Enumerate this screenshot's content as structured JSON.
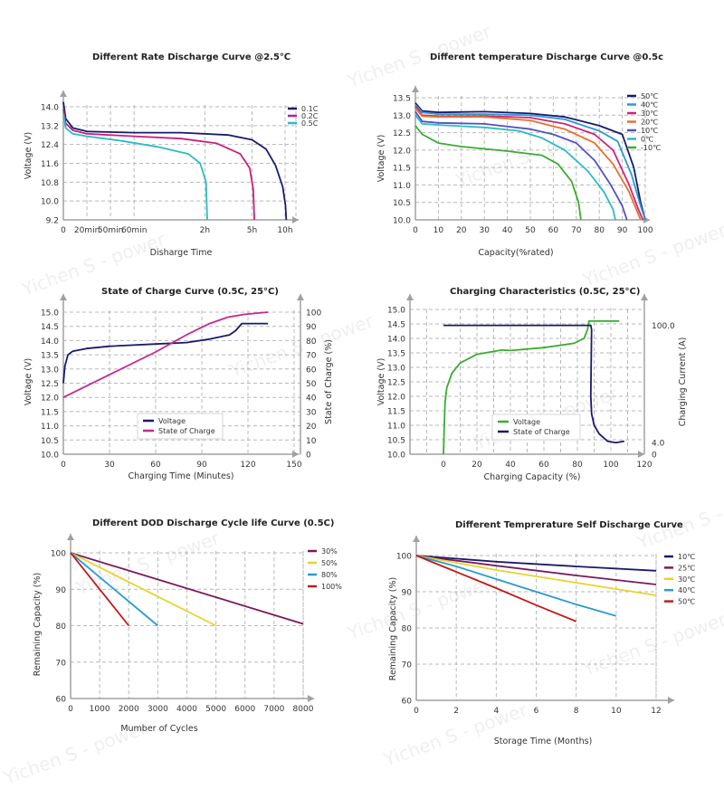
{
  "watermark": "Yichen S - power",
  "chart_data": [
    {
      "id": "rate",
      "type": "line",
      "title": "Different Rate Discharge Curve @2.5℃",
      "xlabel": "Disharge Time",
      "ylabel": "Voltage (V)",
      "x_scale": "categorical-time",
      "xticks": [
        {
          "label": "0",
          "pos": 0
        },
        {
          "label": "20min",
          "pos": 1
        },
        {
          "label": "50min",
          "pos": 2
        },
        {
          "label": "60min",
          "pos": 3
        },
        {
          "label": "2h",
          "pos": 6
        },
        {
          "label": "5h",
          "pos": 8
        },
        {
          "label": "10h",
          "pos": 9.4
        }
      ],
      "xlim": [
        0,
        10
      ],
      "yticks": [
        9.2,
        10.0,
        10.8,
        11.6,
        12.4,
        13.2,
        14.0
      ],
      "ylim": [
        9.2,
        14.6
      ],
      "grid": true,
      "legend": "top-right",
      "series": [
        {
          "name": "0.1C",
          "color": "#1a1a6e",
          "points": [
            [
              0,
              14.2
            ],
            [
              0.1,
              13.5
            ],
            [
              0.4,
              13.1
            ],
            [
              1,
              12.95
            ],
            [
              3,
              12.9
            ],
            [
              5,
              12.9
            ],
            [
              7,
              12.8
            ],
            [
              8,
              12.6
            ],
            [
              8.6,
              12.2
            ],
            [
              9,
              11.5
            ],
            [
              9.3,
              10.6
            ],
            [
              9.42,
              9.8
            ],
            [
              9.45,
              9.2
            ]
          ]
        },
        {
          "name": "0.2C",
          "color": "#c81e7c",
          "points": [
            [
              0,
              13.9
            ],
            [
              0.1,
              13.3
            ],
            [
              0.4,
              13.0
            ],
            [
              1,
              12.85
            ],
            [
              3,
              12.75
            ],
            [
              5,
              12.65
            ],
            [
              6.5,
              12.45
            ],
            [
              7.5,
              12.0
            ],
            [
              7.9,
              11.4
            ],
            [
              8.05,
              10.5
            ],
            [
              8.1,
              9.2
            ]
          ]
        },
        {
          "name": "0.5C",
          "color": "#2bbcc4",
          "points": [
            [
              0,
              13.7
            ],
            [
              0.1,
              13.1
            ],
            [
              0.4,
              12.85
            ],
            [
              1,
              12.75
            ],
            [
              2.5,
              12.55
            ],
            [
              4,
              12.3
            ],
            [
              5.3,
              12.0
            ],
            [
              5.8,
              11.6
            ],
            [
              6.05,
              10.8
            ],
            [
              6.1,
              9.2
            ]
          ]
        }
      ]
    },
    {
      "id": "temp",
      "type": "line",
      "title": "Different temperature Discharge Curve  @0.5c",
      "xlabel": "Capacity(%rated)",
      "ylabel": "Voltage (V)",
      "xticks": [
        0,
        10,
        20,
        30,
        40,
        50,
        60,
        70,
        80,
        90,
        100
      ],
      "xlim": [
        0,
        110
      ],
      "yticks": [
        10.0,
        10.5,
        11.0,
        11.5,
        12.0,
        12.5,
        13.0,
        13.5
      ],
      "ylim": [
        10.0,
        13.7
      ],
      "grid": true,
      "legend": "top-right",
      "series": [
        {
          "name": "50℃",
          "color": "#1a1a6e",
          "points": [
            [
              0,
              13.35
            ],
            [
              3,
              13.12
            ],
            [
              10,
              13.08
            ],
            [
              30,
              13.1
            ],
            [
              50,
              13.05
            ],
            [
              65,
              12.95
            ],
            [
              80,
              12.7
            ],
            [
              90,
              12.45
            ],
            [
              95,
              11.5
            ],
            [
              98,
              10.5
            ],
            [
              100,
              10.0
            ]
          ]
        },
        {
          "name": "40℃",
          "color": "#2a9bd0",
          "points": [
            [
              0,
              13.3
            ],
            [
              3,
              13.08
            ],
            [
              10,
              13.03
            ],
            [
              30,
              13.03
            ],
            [
              50,
              13.0
            ],
            [
              65,
              12.88
            ],
            [
              80,
              12.55
            ],
            [
              88,
              12.25
            ],
            [
              94,
              11.3
            ],
            [
              98,
              10.4
            ],
            [
              100,
              10.0
            ]
          ]
        },
        {
          "name": "30℃",
          "color": "#d0237f",
          "points": [
            [
              0,
              13.25
            ],
            [
              3,
              13.0
            ],
            [
              10,
              12.97
            ],
            [
              30,
              12.98
            ],
            [
              50,
              12.93
            ],
            [
              65,
              12.75
            ],
            [
              78,
              12.45
            ],
            [
              86,
              12.0
            ],
            [
              93,
              11.0
            ],
            [
              97,
              10.3
            ],
            [
              99,
              10.0
            ]
          ]
        },
        {
          "name": "20℃",
          "color": "#e8702a",
          "points": [
            [
              0,
              13.2
            ],
            [
              3,
              12.97
            ],
            [
              10,
              12.95
            ],
            [
              30,
              12.95
            ],
            [
              50,
              12.85
            ],
            [
              65,
              12.6
            ],
            [
              78,
              12.2
            ],
            [
              86,
              11.6
            ],
            [
              93,
              10.8
            ],
            [
              98,
              10.0
            ]
          ]
        },
        {
          "name": "10℃",
          "color": "#5252c0",
          "points": [
            [
              0,
              13.1
            ],
            [
              3,
              12.82
            ],
            [
              10,
              12.78
            ],
            [
              30,
              12.75
            ],
            [
              50,
              12.6
            ],
            [
              60,
              12.45
            ],
            [
              70,
              12.2
            ],
            [
              78,
              11.7
            ],
            [
              85,
              11.0
            ],
            [
              90,
              10.4
            ],
            [
              92,
              10.0
            ]
          ]
        },
        {
          "name": "0℃",
          "color": "#2bbcc4",
          "points": [
            [
              0,
              13.0
            ],
            [
              3,
              12.75
            ],
            [
              10,
              12.72
            ],
            [
              30,
              12.65
            ],
            [
              45,
              12.55
            ],
            [
              55,
              12.35
            ],
            [
              65,
              12.0
            ],
            [
              75,
              11.4
            ],
            [
              82,
              10.8
            ],
            [
              86,
              10.3
            ],
            [
              87,
              10.0
            ]
          ]
        },
        {
          "name": "-10℃",
          "color": "#3aad2e",
          "points": [
            [
              0,
              12.7
            ],
            [
              3,
              12.45
            ],
            [
              10,
              12.2
            ],
            [
              20,
              12.1
            ],
            [
              40,
              11.97
            ],
            [
              55,
              11.85
            ],
            [
              62,
              11.6
            ],
            [
              68,
              11.1
            ],
            [
              71,
              10.5
            ],
            [
              72,
              10.0
            ]
          ]
        }
      ]
    },
    {
      "id": "soc",
      "type": "line",
      "title": "State of Charge Curve (0.5C, 25°C)",
      "xlabel": "Charging Time (Minutes)",
      "ylabel": "Voltage (V)",
      "y2label": "State of Charge (%)",
      "xticks": [
        0,
        30,
        60,
        90,
        120,
        150
      ],
      "xlim": [
        0,
        150
      ],
      "yticks": [
        10.0,
        10.5,
        11.0,
        11.5,
        12.0,
        12.5,
        13.0,
        13.5,
        14.0,
        14.5,
        15.0
      ],
      "ylim": [
        10.0,
        15.0
      ],
      "y2ticks": [
        0,
        10,
        20,
        30,
        40,
        50,
        60,
        70,
        80,
        90,
        100
      ],
      "y2lim": [
        0,
        100
      ],
      "grid": true,
      "legend": "center-bottom",
      "series": [
        {
          "name": "Voltage",
          "axis": "left",
          "color": "#1a1a6e",
          "points": [
            [
              0,
              12.5
            ],
            [
              1,
              13.1
            ],
            [
              3,
              13.5
            ],
            [
              6,
              13.62
            ],
            [
              15,
              13.72
            ],
            [
              30,
              13.8
            ],
            [
              60,
              13.88
            ],
            [
              80,
              13.93
            ],
            [
              95,
              14.05
            ],
            [
              108,
              14.2
            ],
            [
              112,
              14.35
            ],
            [
              116,
              14.6
            ],
            [
              133,
              14.6
            ]
          ]
        },
        {
          "name": "State of Charge",
          "axis": "right",
          "color": "#c8288e",
          "points": [
            [
              0,
              40
            ],
            [
              30,
              56
            ],
            [
              60,
              72
            ],
            [
              80,
              84
            ],
            [
              95,
              92
            ],
            [
              107,
              96.5
            ],
            [
              118,
              98.5
            ],
            [
              133,
              100
            ]
          ]
        }
      ]
    },
    {
      "id": "charging",
      "type": "line",
      "title": "Charging Characteristics (0.5C, 25°C)",
      "xlabel": "Charging Capacity (%)",
      "ylabel": "Voltage (V)",
      "y2label": "Charging Current  (A)",
      "xticks": [
        0,
        20,
        40,
        60,
        80,
        100,
        120
      ],
      "xlim": [
        -20,
        120
      ],
      "yticks": [
        10.0,
        10.5,
        11.0,
        11.5,
        12.0,
        12.5,
        13.0,
        13.5,
        14.0,
        14.5,
        15.0
      ],
      "ylim": [
        10.0,
        15.0
      ],
      "y2ticks_labels": [
        "0",
        "4.0",
        "100.0"
      ],
      "grid": true,
      "legend": "center-bottom",
      "series": [
        {
          "name": "Voltage",
          "axis": "left",
          "color": "#3aad2e",
          "points": [
            [
              0,
              10.0
            ],
            [
              0.5,
              11.0
            ],
            [
              1,
              11.8
            ],
            [
              2,
              12.3
            ],
            [
              5,
              12.8
            ],
            [
              10,
              13.15
            ],
            [
              20,
              13.45
            ],
            [
              35,
              13.6
            ],
            [
              40,
              13.58
            ],
            [
              60,
              13.68
            ],
            [
              78,
              13.83
            ],
            [
              84,
              14.0
            ],
            [
              86,
              14.3
            ],
            [
              87,
              14.6
            ],
            [
              105,
              14.6
            ]
          ]
        },
        {
          "name": "State of Charge",
          "axis": "right",
          "color": "#1a1a6e",
          "points": [
            [
              0,
              14.45
            ],
            [
              88,
              14.45
            ],
            [
              88.5,
              14.3
            ],
            [
              88,
              12.0
            ],
            [
              88.5,
              11.4
            ],
            [
              90,
              11.0
            ],
            [
              93,
              10.7
            ],
            [
              98,
              10.45
            ],
            [
              103,
              10.4
            ],
            [
              108,
              10.45
            ]
          ]
        }
      ]
    },
    {
      "id": "dod",
      "type": "line",
      "title": "Different DOD Discharge Cycle life Curve (0.5C)",
      "xlabel": "Mumber of Cycles",
      "ylabel": "Remaining Capacity (%)",
      "xticks": [
        0,
        1000,
        2000,
        3000,
        4000,
        5000,
        6000,
        7000,
        8000
      ],
      "xlim": [
        0,
        9000
      ],
      "yticks": [
        60,
        70,
        80,
        90,
        100
      ],
      "ylim": [
        60,
        103
      ],
      "grid": true,
      "legend": "top-right",
      "series": [
        {
          "name": "30%",
          "color": "#7a1a5e",
          "points": [
            [
              0,
              100
            ],
            [
              8000,
              80.5
            ]
          ]
        },
        {
          "name": "50%",
          "color": "#e8d32a",
          "points": [
            [
              0,
              100
            ],
            [
              5000,
              80
            ]
          ]
        },
        {
          "name": "80%",
          "color": "#2a9bd0",
          "points": [
            [
              0,
              100
            ],
            [
              3000,
              80
            ]
          ]
        },
        {
          "name": "100%",
          "color": "#c01a1a",
          "points": [
            [
              0,
              100
            ],
            [
              2000,
              80
            ]
          ]
        }
      ]
    },
    {
      "id": "self",
      "type": "line",
      "title": "Different Tempreraturе Self Discharge Curve",
      "xlabel": "Storage Time (Months)",
      "ylabel": "Remaining Capacity (%)",
      "xticks": [
        0,
        2,
        4,
        6,
        8,
        10,
        12
      ],
      "xlim": [
        0,
        13.5
      ],
      "yticks": [
        60,
        70,
        80,
        90,
        100
      ],
      "ylim": [
        60,
        103
      ],
      "grid": true,
      "legend": "top-right",
      "series": [
        {
          "name": "10℃",
          "color": "#1a1a6e",
          "points": [
            [
              0,
              100
            ],
            [
              4,
              98.3
            ],
            [
              8,
              97
            ],
            [
              12,
              95.8
            ]
          ]
        },
        {
          "name": "25℃",
          "color": "#7a1a5e",
          "points": [
            [
              0,
              100
            ],
            [
              4,
              97.2
            ],
            [
              8,
              94.5
            ],
            [
              12,
              92
            ]
          ]
        },
        {
          "name": "30℃",
          "color": "#e8d32a",
          "points": [
            [
              0,
              100
            ],
            [
              4,
              96
            ],
            [
              8,
              92.5
            ],
            [
              12,
              89
            ]
          ]
        },
        {
          "name": "40℃",
          "color": "#2a9bd0",
          "points": [
            [
              0,
              100
            ],
            [
              2,
              97
            ],
            [
              4,
              93.5
            ],
            [
              6,
              90
            ],
            [
              8,
              86.5
            ],
            [
              10,
              83.3
            ]
          ]
        },
        {
          "name": "50℃",
          "color": "#c01a1a",
          "points": [
            [
              0,
              100
            ],
            [
              2,
              95.5
            ],
            [
              4,
              91
            ],
            [
              6,
              86.3
            ],
            [
              8,
              81.8
            ]
          ]
        }
      ]
    }
  ]
}
